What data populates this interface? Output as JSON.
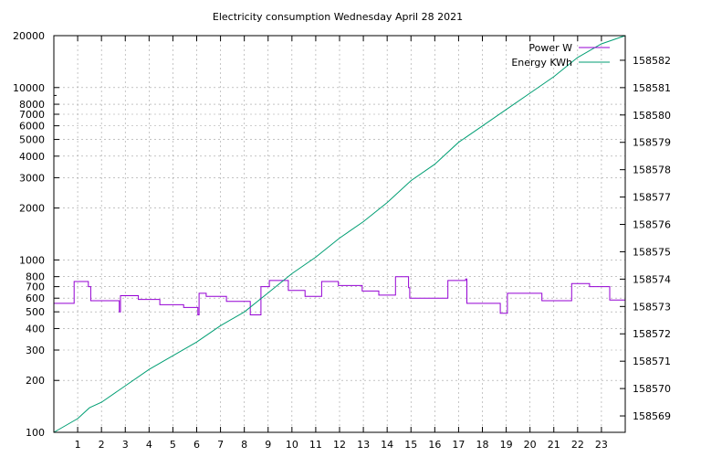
{
  "chart_data": {
    "type": "line",
    "title": "Electricity consumption Wednesday April 28 2021",
    "xlim": [
      0,
      24
    ],
    "x_ticks": [
      1,
      2,
      3,
      4,
      5,
      6,
      7,
      8,
      9,
      10,
      11,
      12,
      13,
      14,
      15,
      16,
      17,
      18,
      19,
      20,
      21,
      22,
      23
    ],
    "y_axis": {
      "scale": "log",
      "range": [
        100,
        20000
      ],
      "ticks": [
        100,
        200,
        300,
        400,
        500,
        600,
        700,
        800,
        1000,
        2000,
        3000,
        4000,
        5000,
        6000,
        7000,
        8000,
        10000,
        20000
      ],
      "tick_labels": [
        "100",
        "200",
        "300",
        "400",
        "500",
        "600",
        "700",
        "800",
        "1000",
        "2000",
        "3000",
        "4000",
        "5000",
        "6000",
        "7000",
        "8000",
        "10000",
        "20000"
      ]
    },
    "y2_axis": {
      "scale": "linear",
      "range": [
        158568.4,
        158582.9
      ],
      "ticks": [
        158569,
        158570,
        158571,
        158572,
        158573,
        158574,
        158575,
        158576,
        158577,
        158578,
        158579,
        158580,
        158581,
        158582
      ],
      "tick_labels": [
        "158569",
        "158570",
        "158571",
        "158572",
        "158573",
        "158574",
        "158575",
        "158576",
        "158577",
        "158578",
        "158579",
        "158580",
        "158581",
        "158582"
      ]
    },
    "grid": true,
    "legend_position": "top-right",
    "series": [
      {
        "name": "Power W",
        "axis": "y",
        "color": "#9400d3",
        "step": true,
        "x": [
          0,
          0.85,
          1.45,
          1.55,
          2.75,
          2.8,
          2.85,
          3.55,
          4.45,
          5.45,
          6.05,
          6.1,
          6.4,
          7.25,
          8.25,
          8.7,
          9.05,
          9.85,
          10.55,
          11.25,
          11.95,
          12.95,
          13.65,
          14.35,
          14.9,
          14.95,
          16.3,
          16.55,
          17.3,
          17.35,
          18.35,
          18.75,
          19.05,
          20.5,
          21.65,
          21.75,
          22.5,
          23.35,
          24
        ],
        "values": [
          560,
          750,
          700,
          580,
          500,
          620,
          620,
          590,
          550,
          530,
          480,
          640,
          615,
          575,
          480,
          700,
          760,
          665,
          615,
          750,
          710,
          660,
          625,
          800,
          690,
          600,
          600,
          760,
          775,
          560,
          560,
          490,
          640,
          580,
          580,
          730,
          700,
          585,
          585
        ]
      },
      {
        "name": "Energy KWh",
        "axis": "y2",
        "color": "#009e73",
        "step": false,
        "x": [
          0,
          1,
          1.5,
          2,
          3,
          4,
          5,
          6,
          7,
          8,
          9,
          10,
          11,
          12,
          13,
          14,
          15,
          16,
          17,
          18,
          19,
          20,
          21,
          22,
          23,
          24
        ],
        "values": [
          158568.4,
          158568.9,
          158569.3,
          158569.5,
          158570.1,
          158570.7,
          158571.2,
          158571.7,
          158572.3,
          158572.8,
          158573.5,
          158574.2,
          158574.8,
          158575.5,
          158576.1,
          158576.8,
          158577.6,
          158578.2,
          158579.0,
          158579.6,
          158580.2,
          158580.8,
          158581.4,
          158582.1,
          158582.6,
          158582.9
        ]
      }
    ]
  }
}
